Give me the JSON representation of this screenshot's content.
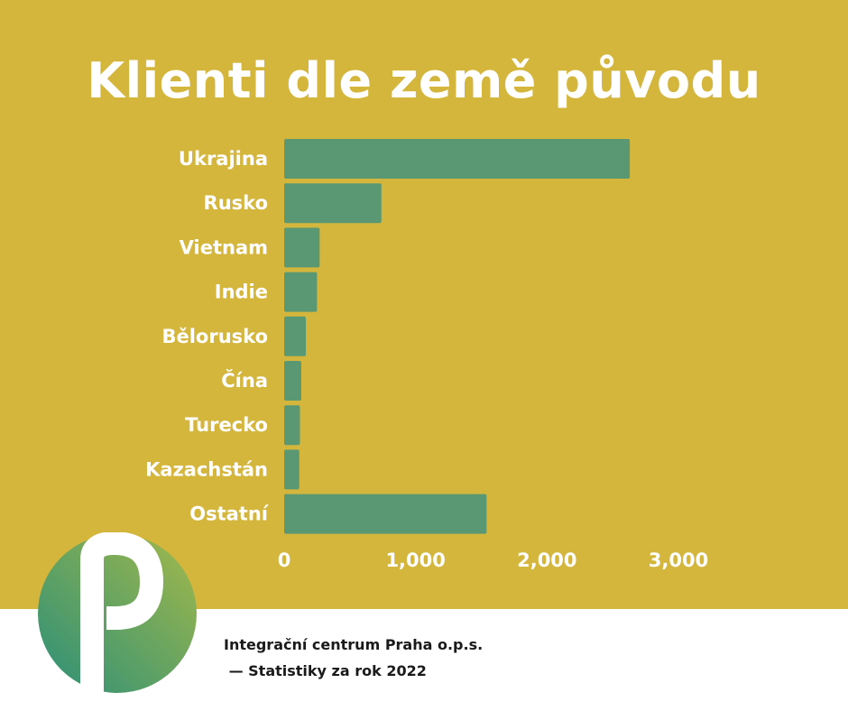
{
  "title": "Klienti dle země původu",
  "footer": {
    "line1": "Integrační centrum Praha o.p.s.",
    "line2": " — Statistiky za rok 2022"
  },
  "colors": {
    "background": "#d4b63d",
    "bar": "#5a9873",
    "text": "#ffffff"
  },
  "logo": {
    "icon": "integracni-centrum-logo-icon"
  },
  "chart_data": {
    "type": "bar",
    "orientation": "horizontal",
    "title": "Klienti dle země původu",
    "categories": [
      "Ukrajina",
      "Rusko",
      "Vietnam",
      "Indie",
      "Bělorusko",
      "Čína",
      "Turecko",
      "Kazachstán",
      "Ostatní"
    ],
    "values": [
      2630,
      740,
      270,
      250,
      165,
      130,
      120,
      115,
      1540
    ],
    "xlim": [
      0,
      3000
    ],
    "xticks": [
      0,
      1000,
      2000,
      3000
    ],
    "xtick_labels": [
      "0",
      "1,000",
      "2,000",
      "3,000"
    ],
    "xlabel": "",
    "ylabel": "",
    "grid": false,
    "legend": "none"
  }
}
